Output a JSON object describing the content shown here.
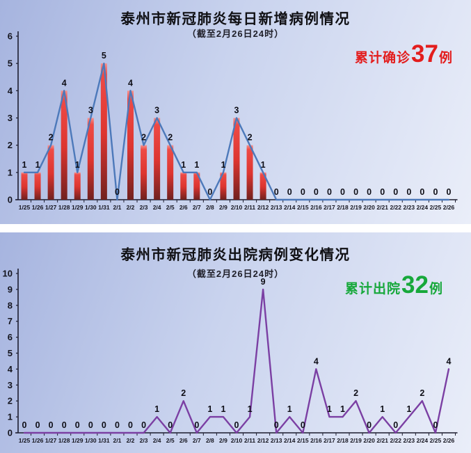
{
  "chart_data": [
    {
      "type": "bar",
      "overlay": "line",
      "title": "泰州市新冠肺炎每日新增病例情况",
      "subtitle": "（截至2月26日24时）",
      "annotation": {
        "prefix": "累计确诊",
        "number": "37",
        "suffix": "例"
      },
      "categories": [
        "1/25",
        "1/26",
        "1/27",
        "1/28",
        "1/29",
        "1/30",
        "1/31",
        "2/1",
        "2/2",
        "2/3",
        "2/4",
        "2/5",
        "2/6",
        "2/7",
        "2/8",
        "2/9",
        "2/10",
        "2/11",
        "2/12",
        "2/13",
        "2/14",
        "2/15",
        "2/16",
        "2/17",
        "2/18",
        "2/19",
        "2/20",
        "2/21",
        "2/22",
        "2/23",
        "2/24",
        "2/25",
        "2/26"
      ],
      "values": [
        1,
        1,
        2,
        4,
        1,
        3,
        5,
        0,
        4,
        2,
        3,
        2,
        1,
        1,
        0,
        1,
        3,
        2,
        1,
        0,
        0,
        0,
        0,
        0,
        0,
        0,
        0,
        0,
        0,
        0,
        0,
        0,
        0
      ],
      "xlabel": "",
      "ylabel": "",
      "ylim": [
        0,
        6
      ],
      "yticks": [
        0,
        1,
        2,
        3,
        4,
        5,
        6
      ],
      "grid": false,
      "legend": "none",
      "colors": {
        "line": "#4d79ba",
        "bar_top": "#f5928e",
        "bar_mid": "#e03a34",
        "bar_bottom": "#71211f",
        "annotation": "#e31d1d",
        "axis": "#1c1c2e"
      }
    },
    {
      "type": "line",
      "title": "泰州市新冠肺炎出院病例变化情况",
      "subtitle": "（截至2月26日24时）",
      "annotation": {
        "prefix": "累计出院",
        "number": "32",
        "suffix": "例"
      },
      "categories": [
        "1/25",
        "1/26",
        "1/27",
        "1/28",
        "1/29",
        "1/30",
        "1/31",
        "2/1",
        "2/2",
        "2/3",
        "2/4",
        "2/5",
        "2/6",
        "2/7",
        "2/8",
        "2/9",
        "2/10",
        "2/11",
        "2/12",
        "2/13",
        "2/14",
        "2/15",
        "2/16",
        "2/17",
        "2/18",
        "2/19",
        "2/20",
        "2/21",
        "2/22",
        "2/23",
        "2/24",
        "2/25",
        "2/26"
      ],
      "values": [
        0,
        0,
        0,
        0,
        0,
        0,
        0,
        0,
        0,
        0,
        1,
        0,
        2,
        0,
        1,
        1,
        0,
        1,
        9,
        0,
        1,
        0,
        4,
        1,
        1,
        2,
        0,
        1,
        0,
        1,
        2,
        0,
        4
      ],
      "xlabel": "",
      "ylabel": "",
      "ylim": [
        0,
        10
      ],
      "yticks": [
        0,
        1,
        2,
        3,
        4,
        5,
        6,
        7,
        8,
        9,
        10
      ],
      "grid": false,
      "legend": "none",
      "colors": {
        "line": "#7b3fa3",
        "annotation": "#17a83b",
        "axis": "#1c1c2e"
      }
    }
  ]
}
